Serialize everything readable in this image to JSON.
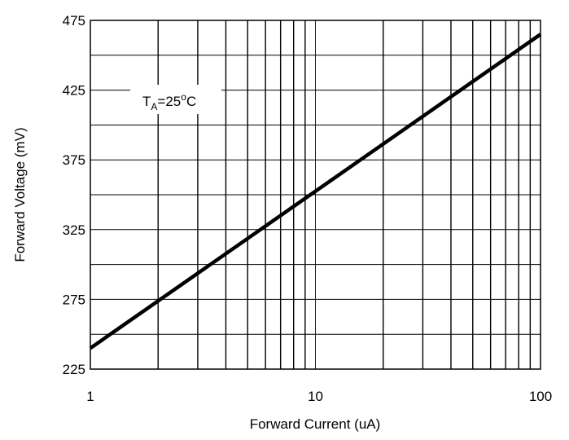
{
  "chart_data": {
    "type": "line",
    "title": "",
    "xlabel": "Forward Current (uA)",
    "ylabel": "Forward Voltage (mV)",
    "x_scale": "log",
    "xlim": [
      1,
      100
    ],
    "ylim": [
      225,
      475
    ],
    "x_ticks": [
      "1",
      "10",
      "100"
    ],
    "y_ticks": [
      "225",
      "275",
      "325",
      "375",
      "425",
      "475"
    ],
    "grid": true,
    "annotation": {
      "main": "T",
      "sub": "A",
      "eq": "=25",
      "sup": "o",
      "unit": "C"
    },
    "series": [
      {
        "x": [
          1,
          100
        ],
        "y": [
          240,
          465
        ]
      }
    ]
  }
}
